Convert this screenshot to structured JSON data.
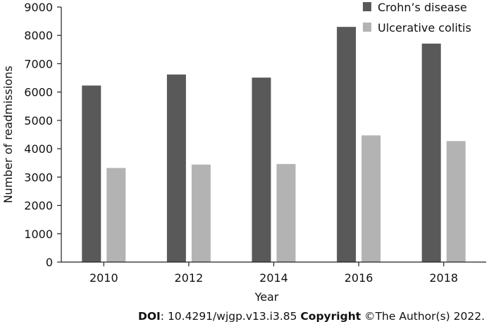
{
  "chart_data": {
    "type": "bar",
    "categories": [
      "2010",
      "2012",
      "2014",
      "2016",
      "2018"
    ],
    "series": [
      {
        "name": "Crohn’s disease",
        "values": [
          6230,
          6620,
          6510,
          8300,
          7710
        ],
        "color": "#595959"
      },
      {
        "name": "Ulcerative colitis",
        "values": [
          3320,
          3440,
          3460,
          4470,
          4270
        ],
        "color": "#b3b3b3"
      }
    ],
    "xlabel": "Year",
    "ylabel": "Number of readmissions",
    "ylim": [
      0,
      9000
    ],
    "yticks": [
      0,
      1000,
      2000,
      3000,
      4000,
      5000,
      6000,
      7000,
      8000,
      9000
    ],
    "grid": false,
    "legend_position": "top-right"
  },
  "credit": {
    "doi_label": "DOI",
    "doi_value": ": 10.4291/wjgp.v13.i3.85 ",
    "copyright_label": "Copyright",
    "copyright_value": " ©The Author(s) 2022."
  }
}
